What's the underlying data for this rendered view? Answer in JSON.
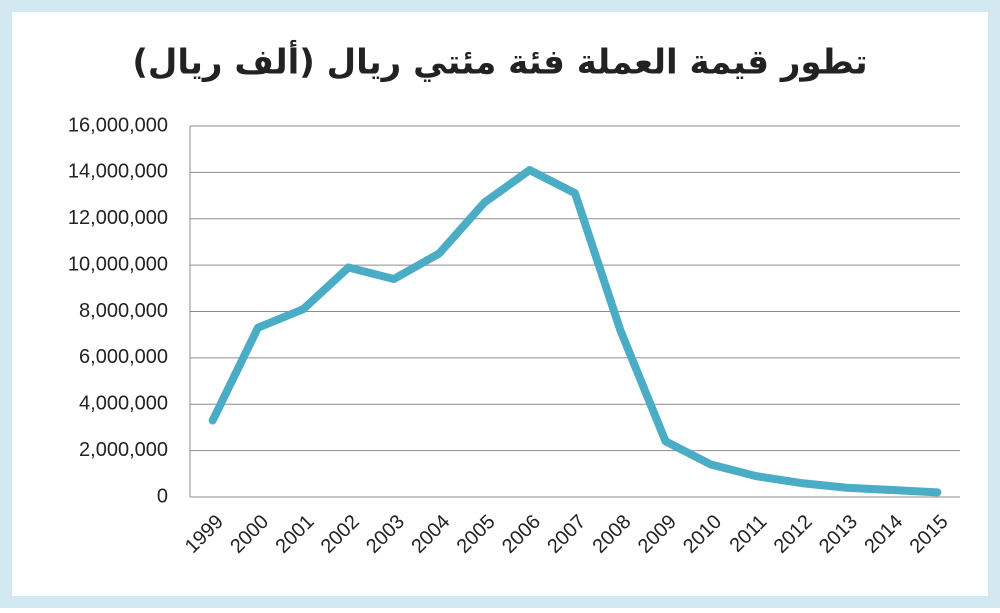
{
  "chart_data": {
    "type": "line",
    "title": "تطور قيمة العملة فئة مئتي ريال (ألف ريال)",
    "categories": [
      "1999",
      "2000",
      "2001",
      "2002",
      "2003",
      "2004",
      "2005",
      "2006",
      "2007",
      "2008",
      "2009",
      "2010",
      "2011",
      "2012",
      "2013",
      "2014",
      "2015"
    ],
    "series": [
      {
        "color": "#4bacc6",
        "values": [
          3300000,
          7300000,
          8100000,
          9900000,
          9400000,
          10500000,
          12700000,
          14100000,
          13100000,
          7200000,
          2400000,
          1400000,
          900000,
          600000,
          400000,
          300000,
          200000
        ]
      }
    ],
    "ylim": [
      0,
      16000000
    ],
    "yticks": [
      0,
      {
        "value": 2000000,
        "label": "2,000,000"
      },
      {
        "value": 4000000,
        "label": "4,000,000"
      },
      {
        "value": 6000000,
        "label": "6,000,000"
      },
      {
        "value": 8000000,
        "label": "8,000,000"
      },
      {
        "value": 10000000,
        "label": "10,000,000"
      },
      {
        "value": 12000000,
        "label": "12,000,000"
      },
      {
        "value": 14000000,
        "label": "14,000,000"
      },
      {
        "value": 16000000,
        "label": "16,000,000"
      }
    ],
    "grid": true
  }
}
